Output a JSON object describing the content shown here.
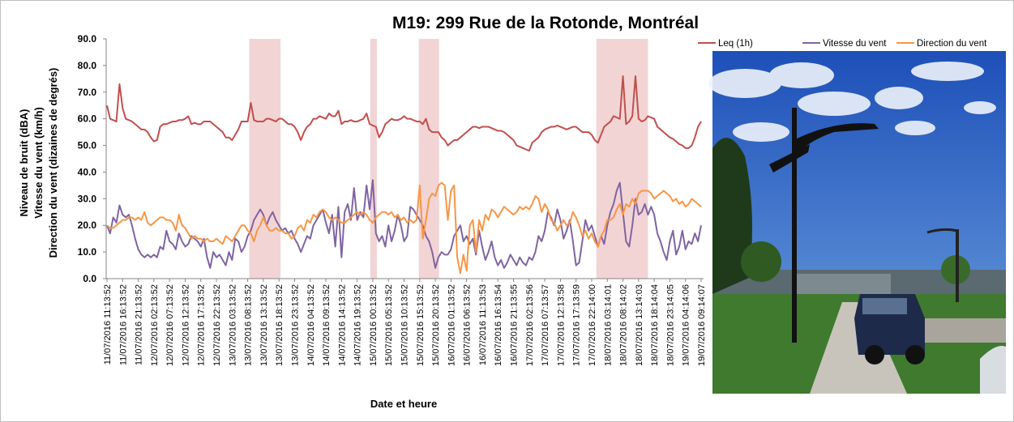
{
  "chart_data": {
    "type": "line",
    "title": "M19: 299 Rue de la Rotonde, Montréal",
    "x_label": "Date et heure",
    "y_label": [
      "Niveau de bruit (dBA)",
      "Vitesse du vent (km/h)",
      "Direction du vent (dizaines de degrés)"
    ],
    "ylim": [
      0,
      90
    ],
    "yticks": [
      {
        "value": 0,
        "label": "0.0"
      },
      {
        "value": 10,
        "label": "10.0"
      },
      {
        "value": 20,
        "label": "20.0"
      },
      {
        "value": 30,
        "label": "30.0"
      },
      {
        "value": 40,
        "label": "40.0"
      },
      {
        "value": 50,
        "label": "50.0"
      },
      {
        "value": 60,
        "label": "60.0"
      },
      {
        "value": 70,
        "label": "70.0"
      },
      {
        "value": 80,
        "label": "80.0"
      },
      {
        "value": 90,
        "label": "90.0"
      }
    ],
    "legend": "top-right",
    "shaded_ranges": [
      [
        45.5,
        55.5
      ],
      [
        84.2,
        86.3
      ],
      [
        99.7,
        106.2
      ],
      [
        156.5,
        173
      ]
    ],
    "shade_color": "#f2d4d4",
    "categories": [
      "11/07/2016 11:13:52",
      null,
      null,
      null,
      null,
      "11/07/2016 16:13:52",
      null,
      null,
      null,
      null,
      "11/07/2016 21:13:52",
      null,
      null,
      null,
      null,
      "12/07/2016 02:13:52",
      null,
      null,
      null,
      null,
      "12/07/2016 07:13:52",
      null,
      null,
      null,
      null,
      "12/07/2016 12:13:52",
      null,
      null,
      null,
      null,
      "12/07/2016 17:13:52",
      null,
      null,
      null,
      null,
      "12/07/2016 22:13:52",
      null,
      null,
      null,
      null,
      "13/07/2016 03:13:52",
      null,
      null,
      null,
      null,
      "13/07/2016 08:13:52",
      null,
      null,
      null,
      null,
      "13/07/2016 13:13:52",
      null,
      null,
      null,
      null,
      "13/07/2016 18:13:52",
      null,
      null,
      null,
      null,
      "13/07/2016 23:13:52",
      null,
      null,
      null,
      null,
      "14/07/2016 04:13:52",
      null,
      null,
      null,
      null,
      "14/07/2016 09:13:52",
      null,
      null,
      null,
      null,
      "14/07/2016 14:13:52",
      null,
      null,
      null,
      null,
      "14/07/2016 19:13:52",
      null,
      null,
      null,
      null,
      "15/07/2016 00:13:52",
      null,
      null,
      null,
      null,
      "15/07/2016 05:13:52",
      null,
      null,
      null,
      null,
      "15/07/2016 10:13:52",
      null,
      null,
      null,
      null,
      "15/07/2016 15:13:52",
      null,
      null,
      null,
      null,
      "15/07/2016 20:13:52",
      null,
      null,
      null,
      null,
      "16/07/2016 01:13:52",
      null,
      null,
      null,
      null,
      "16/07/2016 06:13:52",
      null,
      null,
      null,
      null,
      "16/07/2016 11:13:53",
      null,
      null,
      null,
      null,
      "16/07/2016 16:13:54",
      null,
      null,
      null,
      null,
      "16/07/2016 21:13:55",
      null,
      null,
      null,
      null,
      "17/07/2016 02:13:56",
      null,
      null,
      null,
      null,
      "17/07/2016 07:13:57",
      null,
      null,
      null,
      null,
      "17/07/2016 12:13:58",
      null,
      null,
      null,
      null,
      "17/07/2016 17:13:59",
      null,
      null,
      null,
      null,
      "17/07/2016 22:14:00",
      null,
      null,
      null,
      null,
      "18/07/2016 03:14:01",
      null,
      null,
      null,
      null,
      "18/07/2016 08:14:02",
      null,
      null,
      null,
      null,
      "18/07/2016 13:14:03",
      null,
      null,
      null,
      null,
      "18/07/2016 18:14:04",
      null,
      null,
      null,
      null,
      "18/07/2016 23:14:05",
      null,
      null,
      null,
      null,
      "19/07/2016 04:14:06",
      null,
      null,
      null,
      null,
      "19/07/2016 09:14:07"
    ],
    "series": [
      {
        "name": "Leq (1h)",
        "color": "#c0504d",
        "values": [
          65,
          60,
          59.5,
          59,
          73,
          64,
          60,
          59.5,
          59,
          58,
          57,
          56,
          56,
          55,
          53,
          51.5,
          52,
          57,
          58,
          58,
          58.5,
          59,
          59,
          59.5,
          59.5,
          60,
          61,
          58,
          58.5,
          58,
          58,
          59,
          59,
          59,
          58,
          57,
          56,
          55,
          53,
          53,
          52,
          54,
          56,
          59,
          59,
          59,
          66,
          59.5,
          59,
          59,
          59,
          60,
          60,
          59.5,
          59,
          60,
          60,
          59,
          58,
          58,
          57,
          55,
          52,
          55,
          57,
          58,
          60,
          60,
          61,
          60.5,
          60,
          62,
          61,
          61,
          63,
          58,
          59,
          59,
          59.5,
          59,
          59,
          59.5,
          60,
          62,
          58,
          57.5,
          57,
          53,
          55,
          58,
          59,
          60,
          59.5,
          59.5,
          60,
          61,
          60,
          60,
          59.5,
          59,
          59,
          58,
          60,
          56,
          55,
          55,
          55,
          53,
          52,
          50,
          51,
          52,
          52,
          53,
          54,
          55,
          56,
          57,
          57,
          56.5,
          57,
          57,
          57,
          56.5,
          56,
          55.5,
          55.5,
          55,
          54,
          53,
          52,
          50,
          49.5,
          49,
          48.5,
          48,
          51,
          52,
          53,
          55,
          56,
          56.5,
          57,
          57,
          57.5,
          57,
          56.5,
          56,
          56.5,
          57,
          57,
          56,
          55,
          55,
          55,
          54,
          52,
          51,
          54,
          57,
          58,
          59,
          61,
          60.5,
          60,
          76,
          58,
          59,
          61,
          76,
          60,
          59,
          59.5,
          61,
          60.5,
          60,
          57,
          56,
          55,
          54,
          53,
          52.5,
          51.5,
          50.5,
          50,
          49,
          49,
          50,
          53,
          57,
          59
        ]
      },
      {
        "name": "Vitesse du vent",
        "color": "#8064a2",
        "values": [
          20,
          17,
          23,
          21,
          27.5,
          24,
          23,
          24,
          20,
          15,
          11,
          9,
          8,
          9,
          8,
          9,
          8,
          12,
          11,
          18,
          14,
          13,
          11,
          17,
          14,
          12,
          13,
          16,
          15,
          14,
          12,
          15,
          8,
          4,
          10,
          8,
          9,
          7,
          5,
          10,
          7,
          15,
          14,
          10,
          12,
          16,
          18,
          22,
          24,
          26,
          24,
          20,
          23,
          25,
          22,
          20,
          18,
          19,
          17,
          18,
          15,
          13,
          10,
          13,
          16,
          15,
          20,
          22,
          24,
          26,
          21,
          17,
          24,
          12,
          27,
          8,
          25,
          28,
          22,
          34,
          22,
          25,
          23,
          35,
          26,
          37,
          17,
          14,
          16,
          12,
          20,
          14,
          18,
          24,
          20,
          14,
          16,
          27,
          26,
          24,
          22,
          20,
          16,
          14,
          10,
          4,
          8,
          10,
          9,
          9,
          11,
          16,
          18,
          20,
          14,
          16,
          13,
          15,
          9,
          18,
          12,
          7,
          10,
          14,
          8,
          5,
          7,
          4,
          6,
          9,
          7,
          5,
          8,
          6,
          5,
          8,
          7,
          10,
          16,
          14,
          18,
          25,
          23,
          20,
          26,
          22,
          15,
          18,
          22,
          14,
          5,
          6,
          14,
          22,
          18,
          20,
          16,
          12,
          16,
          13,
          20,
          25,
          28,
          33,
          36,
          25,
          14,
          12,
          20,
          30,
          24,
          25,
          28,
          24,
          27,
          24,
          17,
          14,
          10,
          7,
          14,
          18,
          9,
          12,
          18,
          11,
          14,
          13,
          17,
          14,
          20
        ]
      },
      {
        "name": "Direction du vent",
        "color": "#f79646",
        "values": [
          20,
          19,
          19,
          20,
          21,
          22,
          22,
          23,
          23,
          22,
          23,
          22,
          25,
          21,
          20,
          21,
          22,
          23,
          23,
          22,
          22,
          21,
          18,
          24,
          20,
          19,
          17,
          15,
          16,
          15,
          15,
          14,
          15,
          14,
          14,
          15,
          14,
          13,
          16,
          15,
          14,
          16,
          18,
          20,
          20,
          18,
          17,
          14,
          18,
          20,
          23,
          20,
          18,
          18,
          19,
          18,
          18,
          17,
          17,
          15,
          16,
          19,
          20,
          18,
          22,
          21,
          24,
          23,
          25,
          26,
          25,
          23,
          22,
          23,
          22,
          21,
          21,
          22,
          23,
          24,
          25,
          24,
          25,
          24,
          22,
          21,
          23,
          24,
          25,
          25,
          24,
          25,
          23,
          24,
          22,
          23,
          21,
          22,
          21,
          22,
          35,
          15,
          22,
          30,
          32,
          31,
          35,
          36,
          35,
          22,
          33,
          35,
          8,
          2,
          9,
          3,
          20,
          22,
          10,
          22,
          18,
          24,
          22,
          26,
          25,
          23,
          25,
          27,
          26,
          25,
          24,
          25,
          27,
          26,
          27,
          26,
          28,
          31,
          30,
          25,
          28,
          26,
          22,
          21,
          18,
          20,
          22,
          20,
          21,
          25,
          23,
          20,
          16,
          18,
          15,
          17,
          14,
          12,
          16,
          18,
          22,
          22,
          23,
          26,
          28,
          24,
          28,
          27,
          30,
          28,
          32,
          33,
          33,
          33,
          32,
          30,
          31,
          32,
          33,
          32,
          31,
          29,
          30,
          28,
          29,
          27,
          28,
          30,
          29,
          28,
          27
        ]
      }
    ]
  }
}
